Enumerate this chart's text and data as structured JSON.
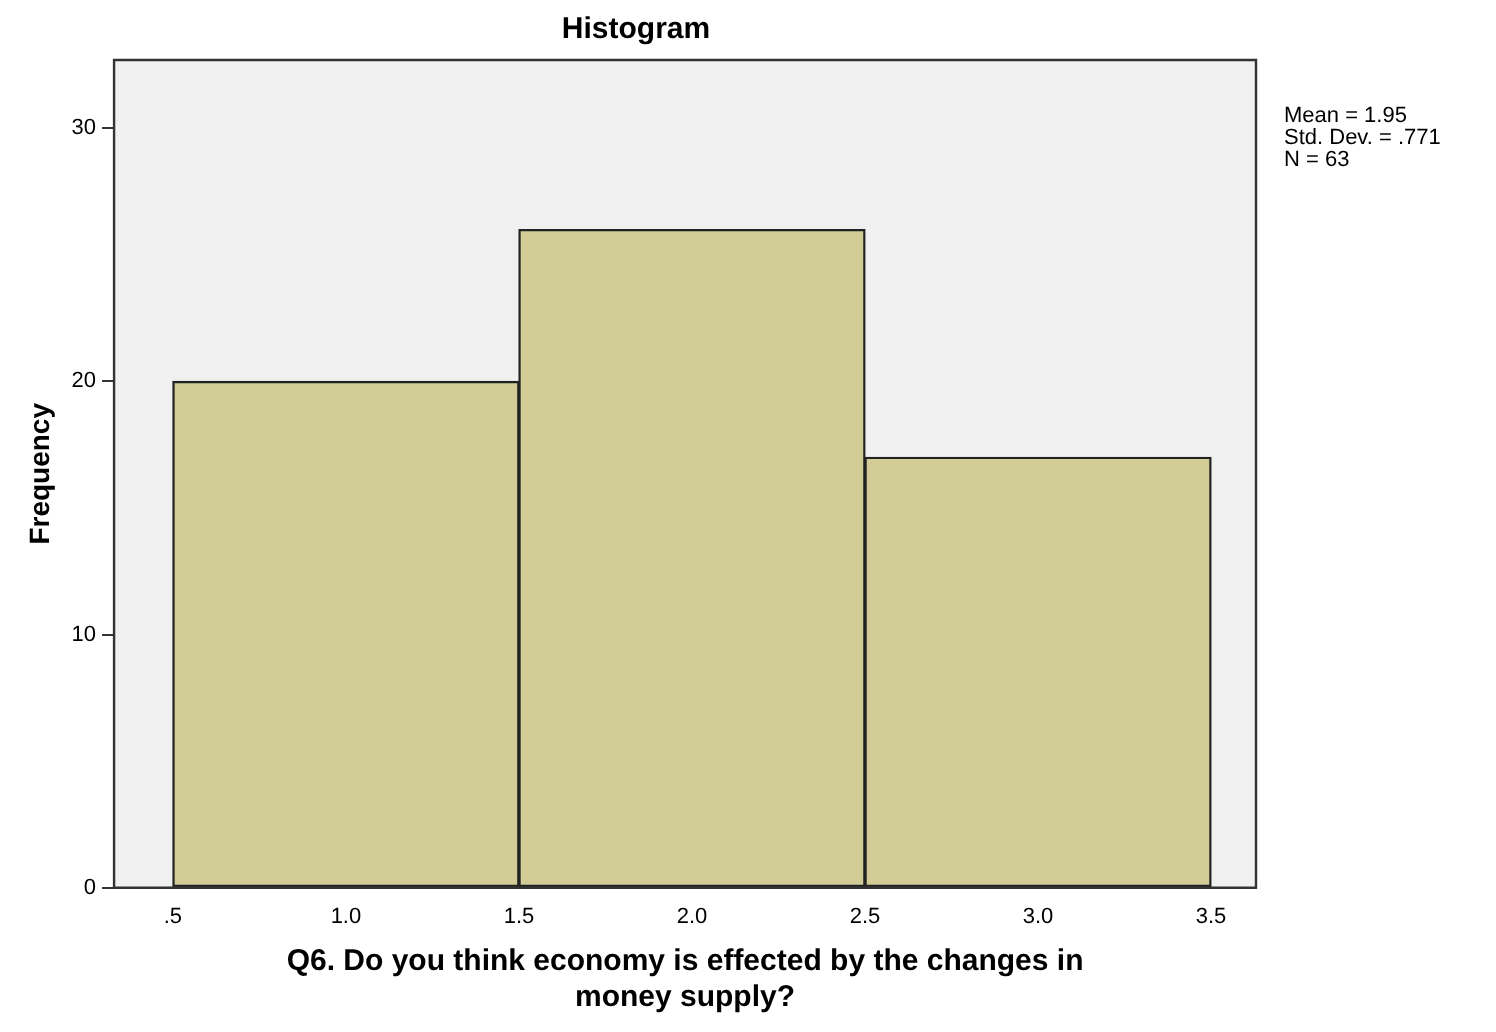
{
  "chart_data": {
    "type": "histogram",
    "title": "Histogram",
    "xlabel": "Q6. Do you think economy is effected by the changes in money supply?",
    "ylabel": "Frequency",
    "bins": [
      0.5,
      1.5,
      2.5,
      3.5
    ],
    "values": [
      20,
      26,
      17
    ],
    "color": "#d2cd96",
    "xlim": [
      0.33,
      3.63
    ],
    "xticks": [
      {
        "value": 0.5,
        "label": ".5"
      },
      {
        "value": 1,
        "label": "1.0"
      },
      {
        "value": 1.5,
        "label": "1.5"
      },
      {
        "value": 2,
        "label": "2.0"
      },
      {
        "value": 2.5,
        "label": "2.5"
      },
      {
        "value": 3,
        "label": "3.0"
      },
      {
        "value": 3.5,
        "label": "3.5"
      }
    ],
    "ylim": [
      0,
      32.7
    ],
    "yticks": [
      0,
      10,
      20,
      30
    ],
    "grid": false,
    "legend": false,
    "annotations": [
      "Mean = 1.95",
      "Std. Dev. = .771",
      "N = 63"
    ]
  }
}
